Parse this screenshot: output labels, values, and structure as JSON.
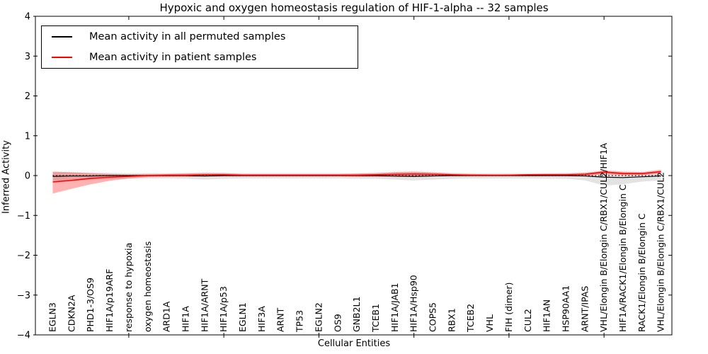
{
  "chart_data": {
    "type": "line",
    "title": "Hypoxic and oxygen homeostasis regulation of HIF-1-alpha -- 32 samples",
    "xlabel": "Cellular Entities",
    "ylabel": "Inferred Activity",
    "ylim": [
      -4,
      4
    ],
    "yticks": [
      4,
      3,
      2,
      1,
      0,
      -1,
      -2,
      -3,
      -4
    ],
    "xtick_positions": [
      4,
      9,
      14,
      19,
      24,
      29
    ],
    "grid": false,
    "legend_position": "upper left",
    "zero_reference_line": {
      "y": 0,
      "style": "dotted",
      "color": "#000000"
    },
    "categories": [
      "EGLN3",
      "CDKN2A",
      "PHD1-3/OS9",
      "HIF1A/p19ARF",
      "response to hypoxia",
      "oxygen homeostasis",
      "ARD1A",
      "HIF1A",
      "HIF1A/ARNT",
      "HIF1A/p53",
      "EGLN1",
      "HIF3A",
      "ARNT",
      "TP53",
      "EGLN2",
      "OS9",
      "GNB2L1",
      "TCEB1",
      "HIF1A/JAB1",
      "HIF1A/Hsp90",
      "COPS5",
      "RBX1",
      "TCEB2",
      "VHL",
      "FIH (dimer)",
      "CUL2",
      "HIF1AN",
      "HSP90AA1",
      "ARNT/IPAS",
      "VHL/Elongin B/Elongin C/RBX1/CUL2/HIF1A",
      "HIF1A/RACK1/Elongin B/Elongin C",
      "RACK1/Elongin B/Elongin C",
      "VHL/Elongin B/Elongin C/RBX1/CUL2"
    ],
    "series": [
      {
        "name": "Mean activity in all permuted samples",
        "color": "#000000",
        "band_color": "rgba(0,0,0,0.11)",
        "values": [
          -0.02,
          -0.01,
          -0.01,
          0.0,
          0.0,
          0.0,
          0.0,
          0.0,
          -0.01,
          0.0,
          0.0,
          0.0,
          0.0,
          0.0,
          0.0,
          0.0,
          0.0,
          0.0,
          -0.01,
          -0.02,
          -0.01,
          0.0,
          0.0,
          0.0,
          0.0,
          0.0,
          0.0,
          0.0,
          -0.01,
          -0.04,
          -0.05,
          -0.03,
          -0.01
        ],
        "band_upper": [
          0.09,
          0.09,
          0.08,
          0.07,
          0.06,
          0.06,
          0.06,
          0.07,
          0.08,
          0.07,
          0.06,
          0.06,
          0.06,
          0.06,
          0.06,
          0.06,
          0.06,
          0.07,
          0.08,
          0.09,
          0.08,
          0.07,
          0.06,
          0.06,
          0.06,
          0.06,
          0.06,
          0.07,
          0.08,
          0.1,
          0.09,
          0.08,
          0.09
        ],
        "band_lower": [
          -0.14,
          -0.13,
          -0.11,
          -0.09,
          -0.08,
          -0.07,
          -0.07,
          -0.08,
          -0.1,
          -0.08,
          -0.07,
          -0.07,
          -0.07,
          -0.07,
          -0.07,
          -0.07,
          -0.08,
          -0.08,
          -0.1,
          -0.12,
          -0.1,
          -0.08,
          -0.07,
          -0.07,
          -0.07,
          -0.07,
          -0.08,
          -0.08,
          -0.12,
          -0.25,
          -0.22,
          -0.15,
          -0.12
        ]
      },
      {
        "name": "Mean activity in patient samples",
        "color": "#ff0000",
        "band_color": "rgba(255,0,0,0.30)",
        "values": [
          -0.16,
          -0.12,
          -0.07,
          -0.04,
          -0.02,
          0.0,
          0.01,
          0.01,
          0.02,
          0.02,
          0.01,
          0.01,
          0.01,
          0.01,
          0.01,
          0.01,
          0.01,
          0.02,
          0.03,
          0.04,
          0.03,
          0.02,
          0.01,
          0.01,
          0.01,
          0.02,
          0.02,
          0.02,
          0.03,
          0.09,
          0.05,
          0.05,
          0.1
        ],
        "band_upper": [
          0.1,
          0.08,
          0.06,
          0.04,
          0.03,
          0.04,
          0.04,
          0.05,
          0.06,
          0.06,
          0.04,
          0.04,
          0.04,
          0.04,
          0.04,
          0.04,
          0.05,
          0.06,
          0.09,
          0.1,
          0.08,
          0.05,
          0.04,
          0.03,
          0.03,
          0.04,
          0.05,
          0.05,
          0.07,
          0.13,
          0.1,
          0.09,
          0.15
        ],
        "band_lower": [
          -0.45,
          -0.33,
          -0.22,
          -0.13,
          -0.07,
          -0.04,
          -0.03,
          -0.03,
          -0.03,
          -0.02,
          -0.02,
          -0.02,
          -0.02,
          -0.02,
          -0.02,
          -0.02,
          -0.03,
          -0.03,
          -0.04,
          -0.03,
          -0.02,
          -0.01,
          -0.01,
          -0.01,
          -0.01,
          -0.01,
          -0.01,
          -0.01,
          0.0,
          0.03,
          0.01,
          0.01,
          0.05
        ]
      }
    ],
    "legend": [
      {
        "label": "Mean activity in all permuted samples",
        "color": "#000000"
      },
      {
        "label": "Mean activity in patient samples",
        "color": "#ff0000"
      }
    ]
  }
}
